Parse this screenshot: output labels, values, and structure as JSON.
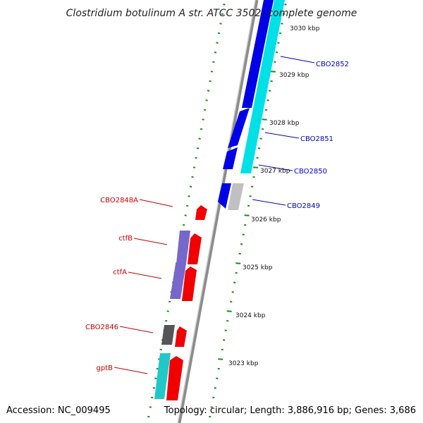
{
  "title": "Clostridium botulinum A str. ATCC 3502, complete genome",
  "footer": {
    "accession": "Accession: NC_009495",
    "summary": "Topology: circular; Length: 3,886,916 bp; Genes: 3,686"
  },
  "colors": {
    "backbone": "#8c8c8c",
    "tick": "#1a8f1a",
    "forward_label": "#0000cc",
    "reverse_label": "#cc0000",
    "blue_gene": "#0000e6",
    "cyan_gene": "#00e0e6",
    "red_gene": "#f00000",
    "purple_gene": "#7766cc",
    "grey_gene": "#c0c0c0",
    "dark_grey_gene": "#555555",
    "teal_gene": "#20c8c8"
  },
  "ticks": [
    "3030 kbp",
    "3029 kbp",
    "3028 kbp",
    "3027 kbp",
    "3026 kbp",
    "3025 kbp",
    "3024 kbp",
    "3023 kbp"
  ],
  "gene_labels": {
    "forward": [
      "CBO2852",
      "CBO2851",
      "CBO2850",
      "CBO2849"
    ],
    "reverse": [
      "CBO2848A",
      "ctfB",
      "ctfA",
      "CBO2846",
      "gptB"
    ]
  }
}
